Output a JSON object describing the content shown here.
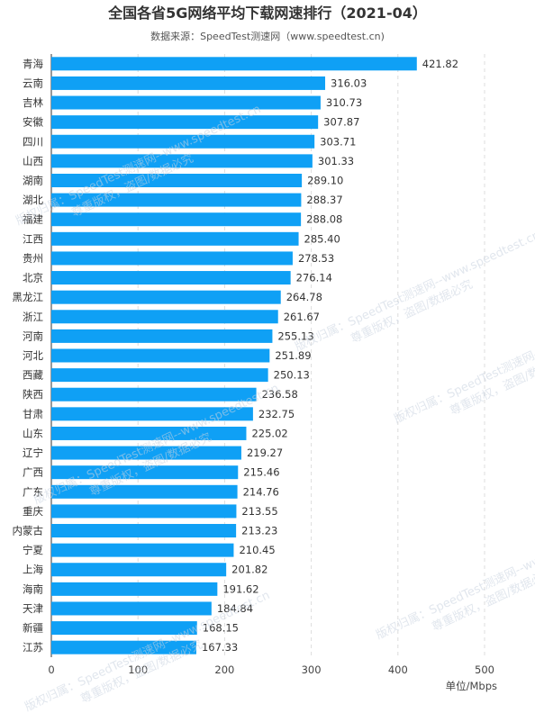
{
  "chart_data": {
    "type": "bar",
    "orientation": "horizontal",
    "title": "全国各省5G网络平均下载网速排行（2021-04）",
    "subtitle": "数据来源：SpeedTest测速网（www.speedtest.cn)",
    "unit_label": "单位/Mbps",
    "xlim": [
      0,
      500
    ],
    "x_ticks": [
      "0",
      "100",
      "200",
      "300",
      "400",
      "500"
    ],
    "grid": "vertical dashed",
    "bar_color": "#0fa0f5",
    "categories": [
      "青海",
      "云南",
      "吉林",
      "安徽",
      "四川",
      "山西",
      "湖南",
      "湖北",
      "福建",
      "江西",
      "贵州",
      "北京",
      "黑龙江",
      "浙江",
      "河南",
      "河北",
      "西藏",
      "陕西",
      "甘肃",
      "山东",
      "辽宁",
      "广西",
      "广东",
      "重庆",
      "内蒙古",
      "宁夏",
      "上海",
      "海南",
      "天津",
      "新疆",
      "江苏"
    ],
    "values": [
      421.82,
      316.03,
      310.73,
      307.87,
      303.71,
      301.33,
      289.1,
      288.37,
      288.08,
      285.4,
      278.53,
      276.14,
      264.78,
      261.67,
      255.13,
      251.89,
      250.13,
      236.58,
      232.75,
      225.02,
      219.27,
      215.46,
      214.76,
      213.55,
      213.23,
      210.45,
      201.82,
      191.62,
      184.84,
      168.15,
      167.33
    ],
    "value_labels": [
      "421.82",
      "316.03",
      "310.73",
      "307.87",
      "303.71",
      "301.33",
      "289.10",
      "288.37",
      "288.08",
      "285.40",
      "278.53",
      "276.14",
      "264.78",
      "261.67",
      "255.13",
      "251.89",
      "250.13",
      "236.58",
      "232.75",
      "225.02",
      "219.27",
      "215.46",
      "214.76",
      "213.55",
      "213.23",
      "210.45",
      "201.82",
      "191.62",
      "184.84",
      "168.15",
      "167.33"
    ]
  },
  "watermark": {
    "line1": "版权归属：SpeedTest测速网--www.speedtest.cn",
    "line2": "尊重版权，盗图/数据必究"
  }
}
